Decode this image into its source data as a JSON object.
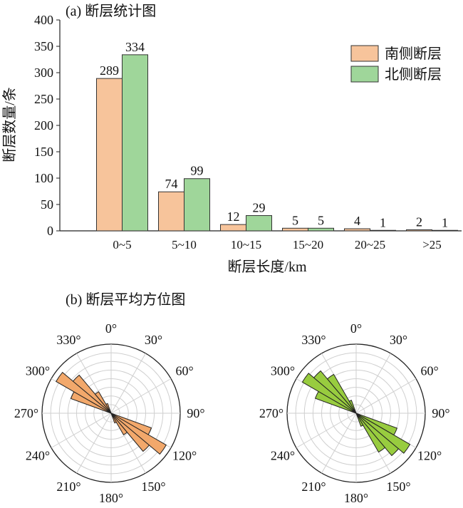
{
  "chart_data": [
    {
      "type": "bar",
      "panel_label": "(a) 断层统计图",
      "xlabel": "断层长度/km",
      "ylabel": "断层数量/条",
      "ylim": [
        0,
        400
      ],
      "y_ticks": [
        "0",
        "50",
        "100",
        "150",
        "200",
        "250",
        "300",
        "350",
        "400"
      ],
      "y_tick_values": [
        0,
        50,
        100,
        150,
        200,
        250,
        300,
        350,
        400
      ],
      "categories": [
        "0~5",
        "5~10",
        "10~15",
        "15~20",
        "20~25",
        ">25"
      ],
      "series": [
        {
          "name": "南侧断层",
          "color": "#f7c49b",
          "values": [
            289,
            74,
            12,
            5,
            4,
            2
          ]
        },
        {
          "name": "北侧断层",
          "color": "#9fd69a",
          "values": [
            334,
            99,
            29,
            5,
            1,
            1
          ]
        }
      ],
      "data_labels": true,
      "legend_position": "top-right",
      "grid": false
    },
    {
      "type": "rose",
      "panel_label": "(b) 断层平均方位图",
      "angle_labels": [
        "0°",
        "30°",
        "60°",
        "90°",
        "120°",
        "150°",
        "180°",
        "210°",
        "240°",
        "270°",
        "300°",
        "330°"
      ],
      "angle_values": [
        0,
        30,
        60,
        90,
        120,
        150,
        180,
        210,
        240,
        270,
        300,
        330
      ],
      "grid": true,
      "roses": [
        {
          "color": "#f2a86b",
          "bin_width_deg": 10,
          "petals": [
            {
              "start": 290,
              "end": 300,
              "value": 0.62
            },
            {
              "start": 300,
              "end": 310,
              "value": 0.92
            },
            {
              "start": 310,
              "end": 320,
              "value": 0.72
            },
            {
              "start": 320,
              "end": 330,
              "value": 0.36
            },
            {
              "start": 330,
              "end": 340,
              "value": 0.15
            },
            {
              "start": 110,
              "end": 120,
              "value": 0.62
            },
            {
              "start": 120,
              "end": 130,
              "value": 0.92
            },
            {
              "start": 130,
              "end": 140,
              "value": 0.72
            },
            {
              "start": 140,
              "end": 150,
              "value": 0.36
            },
            {
              "start": 150,
              "end": 160,
              "value": 0.15
            }
          ]
        },
        {
          "color": "#98cc3f",
          "bin_width_deg": 10,
          "petals": [
            {
              "start": 290,
              "end": 300,
              "value": 0.63
            },
            {
              "start": 300,
              "end": 310,
              "value": 0.9
            },
            {
              "start": 310,
              "end": 320,
              "value": 0.8
            },
            {
              "start": 320,
              "end": 330,
              "value": 0.65
            },
            {
              "start": 330,
              "end": 340,
              "value": 0.2
            },
            {
              "start": 110,
              "end": 120,
              "value": 0.63
            },
            {
              "start": 120,
              "end": 130,
              "value": 0.9
            },
            {
              "start": 130,
              "end": 140,
              "value": 0.8
            },
            {
              "start": 140,
              "end": 150,
              "value": 0.65
            },
            {
              "start": 150,
              "end": 160,
              "value": 0.2
            }
          ]
        }
      ]
    }
  ]
}
